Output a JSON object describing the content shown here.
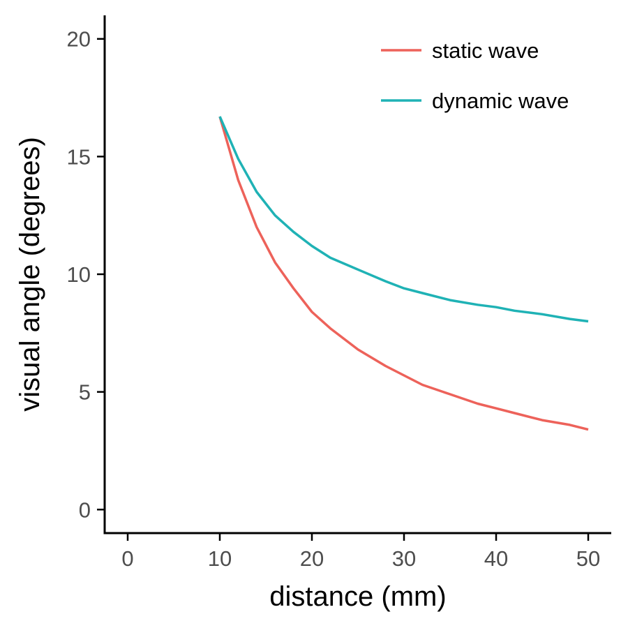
{
  "chart_data": {
    "type": "line",
    "title": "",
    "xlabel": "distance (mm)",
    "ylabel": "visual angle (degrees)",
    "xlim": [
      -2.5,
      52.5
    ],
    "ylim": [
      -1,
      21
    ],
    "xticks": [
      0,
      10,
      20,
      30,
      40,
      50
    ],
    "yticks": [
      0,
      5,
      10,
      15,
      20
    ],
    "grid": false,
    "legend_position": "top-right",
    "x": [
      10,
      12,
      14,
      16,
      18,
      20,
      22,
      25,
      28,
      30,
      32,
      35,
      38,
      40,
      42,
      45,
      48,
      50
    ],
    "series": [
      {
        "name": "static wave",
        "color": "#ed625a",
        "values": [
          16.7,
          14.0,
          12.0,
          10.5,
          9.4,
          8.4,
          7.7,
          6.8,
          6.1,
          5.7,
          5.3,
          4.9,
          4.5,
          4.3,
          4.1,
          3.8,
          3.6,
          3.4
        ]
      },
      {
        "name": "dynamic wave",
        "color": "#1fb2b5",
        "values": [
          16.7,
          14.9,
          13.5,
          12.5,
          11.8,
          11.2,
          10.7,
          10.2,
          9.7,
          9.4,
          9.2,
          8.9,
          8.7,
          8.6,
          8.45,
          8.3,
          8.1,
          8.0
        ]
      }
    ]
  }
}
